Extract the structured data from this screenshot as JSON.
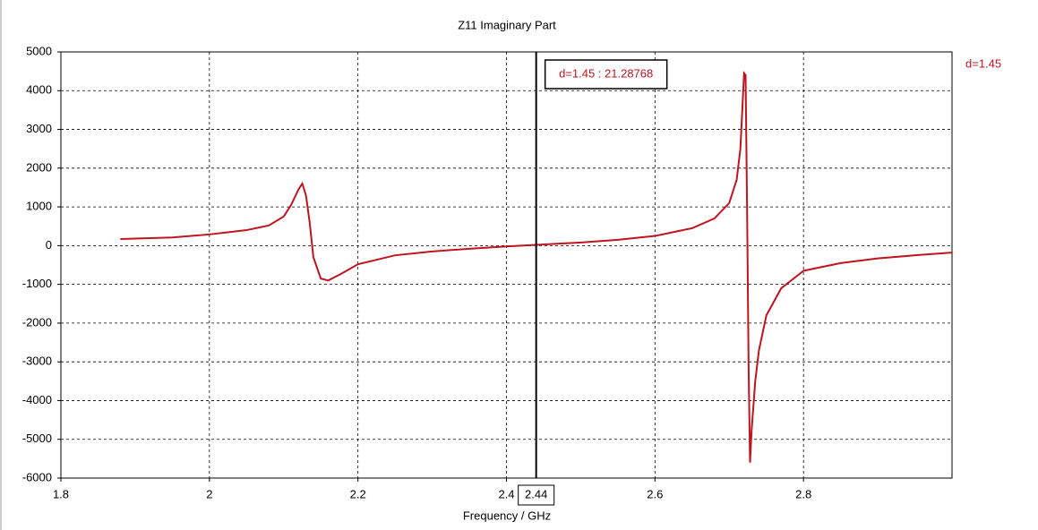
{
  "chart_data": {
    "type": "line",
    "title": "Z11 Imaginary Part",
    "x_label": "Frequency / GHz",
    "xlim": [
      1.8,
      3.0
    ],
    "xticks": [
      1.8,
      2,
      2.2,
      2.4,
      2.6,
      2.8
    ],
    "ylim": [
      -6000,
      5000
    ],
    "yticks": [
      -6000,
      -5000,
      -4000,
      -3000,
      -2000,
      -1000,
      0,
      1000,
      2000,
      3000,
      4000,
      5000
    ],
    "grid": true,
    "legend": "top-right",
    "series": [
      {
        "name": "d=1.45",
        "color": "#c0141e",
        "x": [
          1.88,
          1.95,
          2.0,
          2.05,
          2.08,
          2.1,
          2.11,
          2.12,
          2.125,
          2.13,
          2.135,
          2.14,
          2.15,
          2.16,
          2.18,
          2.2,
          2.25,
          2.3,
          2.35,
          2.4,
          2.44,
          2.5,
          2.55,
          2.6,
          2.65,
          2.68,
          2.7,
          2.71,
          2.715,
          2.72,
          2.722,
          2.724,
          2.726,
          2.728,
          2.73,
          2.735,
          2.74,
          2.75,
          2.77,
          2.8,
          2.85,
          2.9,
          2.95,
          3.0
        ],
        "values": [
          170,
          210,
          290,
          400,
          520,
          750,
          1050,
          1450,
          1600,
          1300,
          600,
          -300,
          -850,
          -900,
          -700,
          -480,
          -250,
          -150,
          -80,
          -20,
          21.28768,
          80,
          150,
          250,
          450,
          700,
          1100,
          1700,
          2500,
          4450,
          4400,
          1000,
          -3000,
          -5600,
          -4800,
          -3500,
          -2700,
          -1800,
          -1100,
          -650,
          -450,
          -330,
          -250,
          -180
        ]
      }
    ],
    "marker": {
      "x": 2.44,
      "annotation": "d=1.45 : 21.28768"
    }
  }
}
